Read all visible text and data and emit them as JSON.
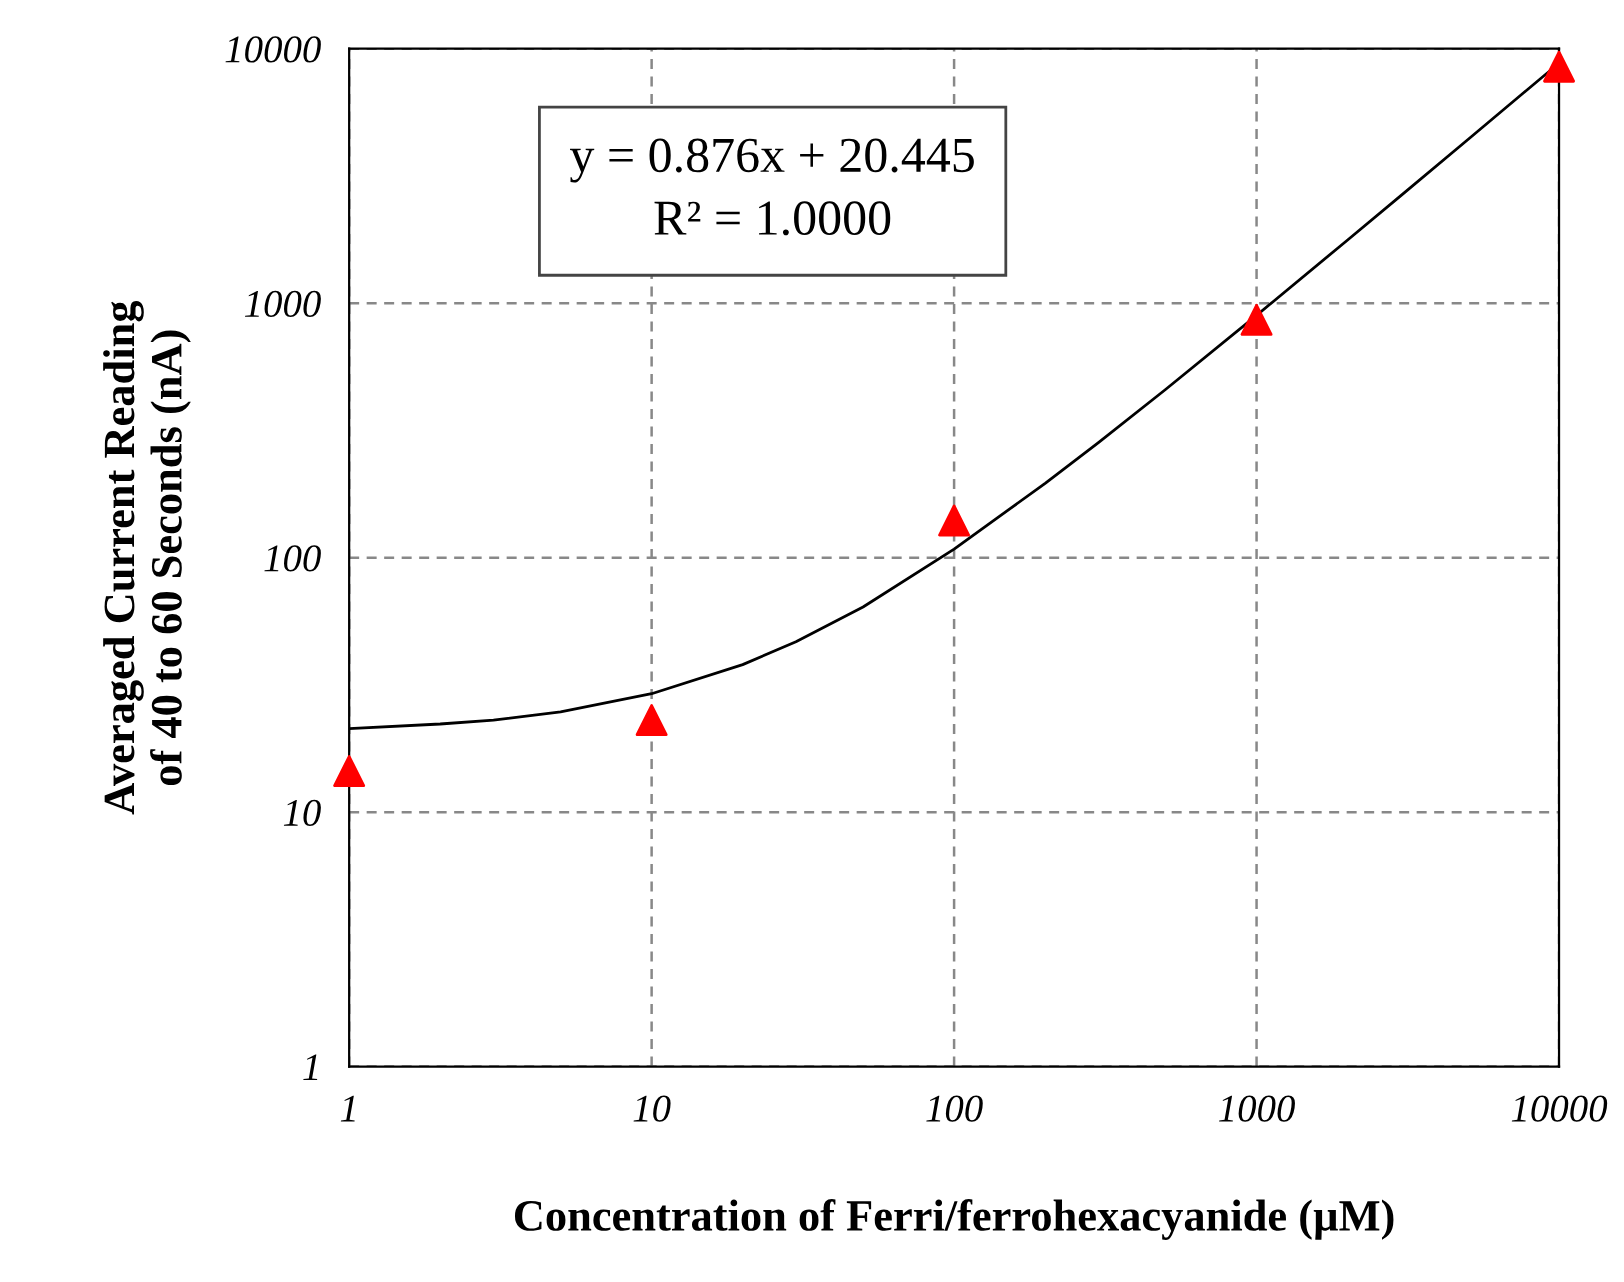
{
  "chart_data": {
    "type": "scatter",
    "xlabel": "Concentration of Ferri/ferrohexacyanide (µM)",
    "ylabel": "Averaged Current Reading\nof 40 to 60 Seconds (nA)",
    "log": "xy",
    "xlim": [
      1,
      10000
    ],
    "ylim": [
      1,
      10000
    ],
    "xticks": [
      1,
      10,
      100,
      1000,
      10000
    ],
    "yticks": [
      1,
      10,
      100,
      1000,
      10000
    ],
    "grid": true,
    "series": [
      {
        "marker": "triangle",
        "color": "#ff0000",
        "x": [
          1,
          10,
          100,
          1000,
          10000
        ],
        "values": [
          14.5,
          23,
          140,
          860,
          8500
        ]
      },
      {
        "type": "line",
        "color": "#000000",
        "line_style": "solid",
        "x": [
          1,
          2,
          3,
          5,
          10,
          20,
          30,
          50,
          100,
          200,
          300,
          500,
          1000,
          2000,
          3000,
          5000,
          10000
        ],
        "values": [
          21.3,
          22.2,
          23,
          24.8,
          29.2,
          38,
          46.7,
          64,
          108,
          196,
          283,
          458,
          896,
          1772,
          2648,
          4400,
          8780
        ]
      }
    ],
    "annotations": [
      "y = 0.876x + 20.445\nR² = 1.0000"
    ]
  }
}
